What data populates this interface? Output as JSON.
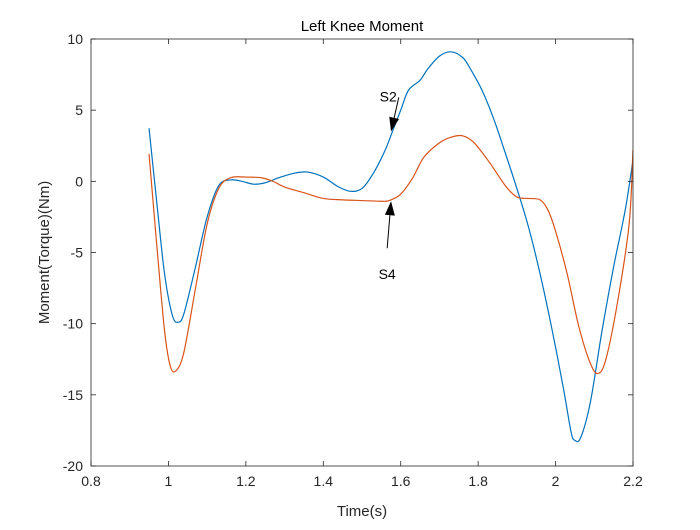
{
  "chart_data": {
    "type": "line",
    "title": "Left Knee Moment",
    "xlabel": "Time(s)",
    "ylabel": "Moment(Torque)(Nm)",
    "xlim": [
      0.8,
      2.2
    ],
    "ylim": [
      -20,
      10
    ],
    "xticks": [
      0.8,
      1,
      1.2,
      1.4,
      1.6,
      1.8,
      2,
      2.2
    ],
    "yticks": [
      -20,
      -15,
      -10,
      -5,
      0,
      5,
      10
    ],
    "grid": false,
    "series": [
      {
        "color": "#0072BD",
        "points": [
          [
            0.95,
            3.7
          ],
          [
            0.97,
            -1.5
          ],
          [
            0.99,
            -6.5
          ],
          [
            1.01,
            -9.4
          ],
          [
            1.025,
            -9.9
          ],
          [
            1.04,
            -9.3
          ],
          [
            1.07,
            -6.0
          ],
          [
            1.1,
            -2.5
          ],
          [
            1.13,
            -0.3
          ],
          [
            1.16,
            0.1
          ],
          [
            1.19,
            0.0
          ],
          [
            1.22,
            -0.2
          ],
          [
            1.25,
            -0.1
          ],
          [
            1.29,
            0.3
          ],
          [
            1.33,
            0.6
          ],
          [
            1.36,
            0.65
          ],
          [
            1.4,
            0.3
          ],
          [
            1.44,
            -0.4
          ],
          [
            1.47,
            -0.7
          ],
          [
            1.5,
            -0.5
          ],
          [
            1.53,
            0.6
          ],
          [
            1.56,
            2.2
          ],
          [
            1.58,
            3.6
          ],
          [
            1.6,
            5.0
          ],
          [
            1.62,
            6.4
          ],
          [
            1.65,
            7.1
          ],
          [
            1.67,
            7.9
          ],
          [
            1.7,
            8.8
          ],
          [
            1.73,
            9.1
          ],
          [
            1.76,
            8.7
          ],
          [
            1.78,
            7.9
          ],
          [
            1.81,
            6.4
          ],
          [
            1.84,
            4.4
          ],
          [
            1.87,
            2.0
          ],
          [
            1.9,
            -0.5
          ],
          [
            1.93,
            -3.2
          ],
          [
            1.96,
            -6.5
          ],
          [
            1.99,
            -10.3
          ],
          [
            2.02,
            -14.5
          ],
          [
            2.04,
            -17.6
          ],
          [
            2.05,
            -18.2
          ],
          [
            2.065,
            -18.0
          ],
          [
            2.09,
            -15.5
          ],
          [
            2.12,
            -10.5
          ],
          [
            2.15,
            -6.0
          ],
          [
            2.18,
            -2.0
          ],
          [
            2.2,
            1.5
          ]
        ]
      },
      {
        "color": "#D95319",
        "points": [
          [
            0.95,
            1.9
          ],
          [
            0.97,
            -4.5
          ],
          [
            0.99,
            -10.5
          ],
          [
            1.005,
            -13.0
          ],
          [
            1.02,
            -13.3
          ],
          [
            1.04,
            -12.0
          ],
          [
            1.07,
            -7.5
          ],
          [
            1.1,
            -3.0
          ],
          [
            1.13,
            -0.5
          ],
          [
            1.16,
            0.25
          ],
          [
            1.2,
            0.3
          ],
          [
            1.24,
            0.25
          ],
          [
            1.27,
            0.0
          ],
          [
            1.3,
            -0.4
          ],
          [
            1.35,
            -0.8
          ],
          [
            1.4,
            -1.2
          ],
          [
            1.45,
            -1.3
          ],
          [
            1.5,
            -1.35
          ],
          [
            1.55,
            -1.4
          ],
          [
            1.57,
            -1.35
          ],
          [
            1.6,
            -0.9
          ],
          [
            1.63,
            0.2
          ],
          [
            1.66,
            1.7
          ],
          [
            1.7,
            2.7
          ],
          [
            1.73,
            3.1
          ],
          [
            1.76,
            3.2
          ],
          [
            1.79,
            2.7
          ],
          [
            1.83,
            1.3
          ],
          [
            1.87,
            -0.3
          ],
          [
            1.9,
            -1.1
          ],
          [
            1.93,
            -1.2
          ],
          [
            1.96,
            -1.3
          ],
          [
            1.98,
            -2.0
          ],
          [
            2.0,
            -3.5
          ],
          [
            2.03,
            -6.5
          ],
          [
            2.06,
            -10.2
          ],
          [
            2.09,
            -12.8
          ],
          [
            2.11,
            -13.5
          ],
          [
            2.13,
            -12.5
          ],
          [
            2.16,
            -8.5
          ],
          [
            2.19,
            -3.0
          ],
          [
            2.2,
            2.2
          ]
        ]
      }
    ],
    "annotations": [
      {
        "text": "S2",
        "label_at": [
          1.595,
          5.95
        ],
        "arrow_from": [
          1.595,
          5.9
        ],
        "arrow_to": [
          1.575,
          3.5
        ]
      },
      {
        "text": "S4",
        "label_at": [
          1.565,
          -6.5
        ],
        "arrow_from": [
          1.565,
          -4.7
        ],
        "arrow_to": [
          1.575,
          -1.4
        ]
      }
    ]
  }
}
